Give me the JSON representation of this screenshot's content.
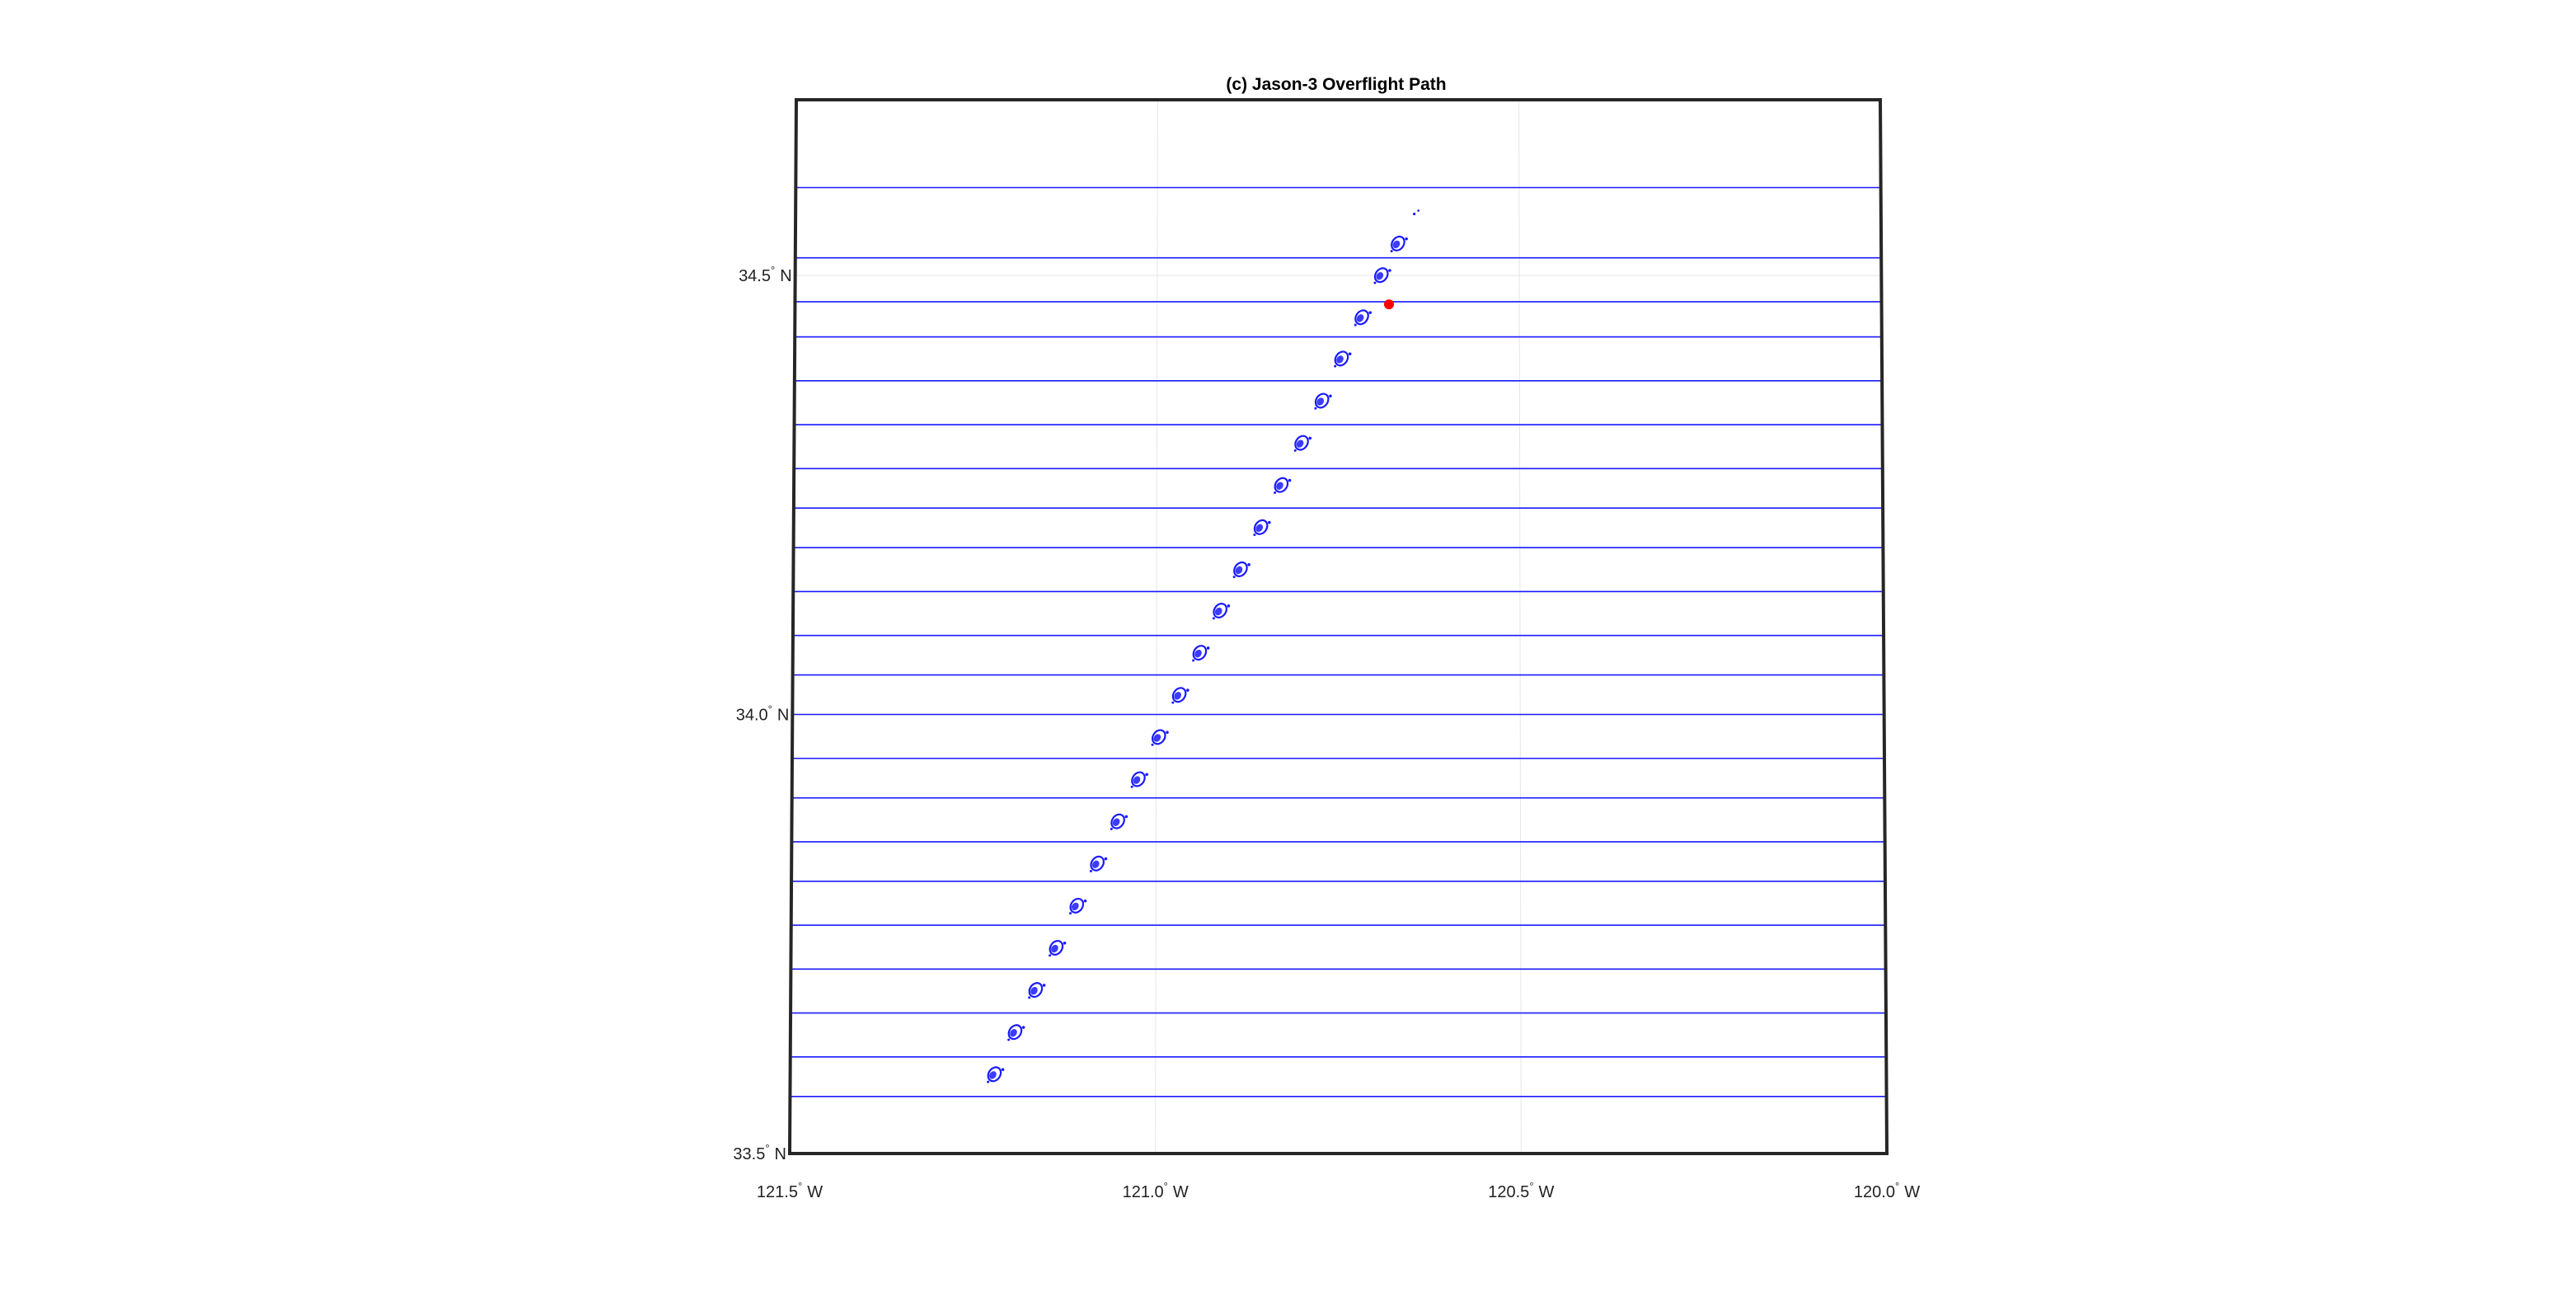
{
  "title": "(c) Jason-3 Overflight Path",
  "chart_data": {
    "type": "scatter",
    "projection": "conic",
    "lon_range": [
      -121.5,
      -120.0
    ],
    "lat_range": [
      33.5,
      34.7
    ],
    "lon_ticks": [
      {
        "value": -121.5,
        "deg": "121.5",
        "hemi": "W"
      },
      {
        "value": -121.0,
        "deg": "121.0",
        "hemi": "W"
      },
      {
        "value": -120.5,
        "deg": "120.5",
        "hemi": "W"
      },
      {
        "value": -120.0,
        "deg": "120.0",
        "hemi": "W"
      }
    ],
    "lat_ticks": [
      {
        "value": 33.5,
        "deg": "33.5",
        "hemi": "N"
      },
      {
        "value": 34.0,
        "deg": "34.0",
        "hemi": "N"
      },
      {
        "value": 34.5,
        "deg": "34.5",
        "hemi": "N"
      }
    ],
    "track_lines_lat": [
      34.6,
      34.52,
      34.47,
      34.43,
      34.38,
      34.33,
      34.28,
      34.235,
      34.19,
      34.14,
      34.09,
      34.045,
      34.0,
      33.95,
      33.905,
      33.855,
      33.81,
      33.76,
      33.71,
      33.66,
      33.61,
      33.565
    ],
    "track_points": [
      {
        "lon": -120.665,
        "lat": 34.536
      },
      {
        "lon": -120.688,
        "lat": 34.5
      },
      {
        "lon": -120.715,
        "lat": 34.452
      },
      {
        "lon": -120.743,
        "lat": 34.405
      },
      {
        "lon": -120.77,
        "lat": 34.357
      },
      {
        "lon": -120.798,
        "lat": 34.309
      },
      {
        "lon": -120.826,
        "lat": 34.261
      },
      {
        "lon": -120.854,
        "lat": 34.213
      },
      {
        "lon": -120.882,
        "lat": 34.165
      },
      {
        "lon": -120.91,
        "lat": 34.118
      },
      {
        "lon": -120.938,
        "lat": 34.07
      },
      {
        "lon": -120.966,
        "lat": 34.022
      },
      {
        "lon": -120.994,
        "lat": 33.974
      },
      {
        "lon": -121.022,
        "lat": 33.926
      },
      {
        "lon": -121.05,
        "lat": 33.878
      },
      {
        "lon": -121.078,
        "lat": 33.83
      },
      {
        "lon": -121.106,
        "lat": 33.782
      },
      {
        "lon": -121.134,
        "lat": 33.734
      },
      {
        "lon": -121.162,
        "lat": 33.686
      },
      {
        "lon": -121.19,
        "lat": 33.638
      },
      {
        "lon": -121.218,
        "lat": 33.59
      }
    ],
    "faint_point": {
      "lon": -120.645,
      "lat": 34.57
    },
    "target": {
      "lon": -120.68,
      "lat": 34.467
    },
    "colors": {
      "track": "#1a1aff",
      "target": "#ff0000",
      "frame": "#262626",
      "grid": "#e6e6e6"
    }
  }
}
